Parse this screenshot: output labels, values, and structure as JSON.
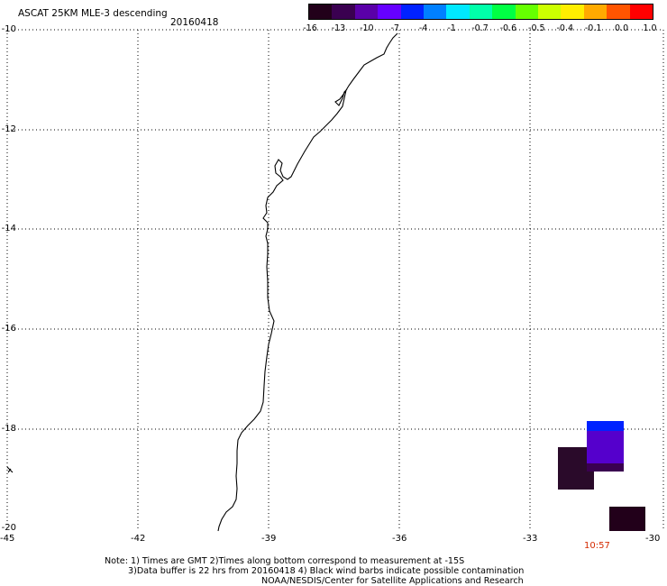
{
  "title": "ASCAT 25KM MLE-3 descending",
  "date": "20160418",
  "colorbar": {
    "colors": [
      "#22001a",
      "#3a0050",
      "#5a00a8",
      "#6600ff",
      "#0022ff",
      "#0080ff",
      "#00e8ff",
      "#00ffaa",
      "#00ff44",
      "#66ff00",
      "#ccff00",
      "#ffee00",
      "#ffaa00",
      "#ff5500",
      "#ff0000"
    ],
    "labels": [
      "-16",
      "-13",
      "-10",
      "-7",
      "-4",
      "-1",
      "-0.7",
      "-0.6",
      "-0.5",
      "-0.4",
      "-0.1",
      "0.0",
      "1.0"
    ]
  },
  "axes": {
    "lat_labels": [
      "-10",
      "-12",
      "-14",
      "-16",
      "-18",
      "-20"
    ],
    "lon_labels": [
      "-45",
      "-42",
      "-39",
      "-36",
      "-33",
      "-30"
    ]
  },
  "time_label": "10:57",
  "notes": {
    "line1": "Note: 1) Times are GMT 2)Times along bottom correspond to measurement at -15S",
    "line2": "3)Data buffer is 22 hrs from 20160418 4) Black wind barbs indicate possible contamination",
    "line3": "NOAA/NESDIS/Center for Satellite Applications and Research"
  },
  "pixels": [
    {
      "color": "#2a0a2a"
    },
    {
      "color": "#5500cc"
    },
    {
      "color": "#0022ff"
    },
    {
      "color": "#3a0050"
    },
    {
      "color": "#22001a"
    }
  ]
}
